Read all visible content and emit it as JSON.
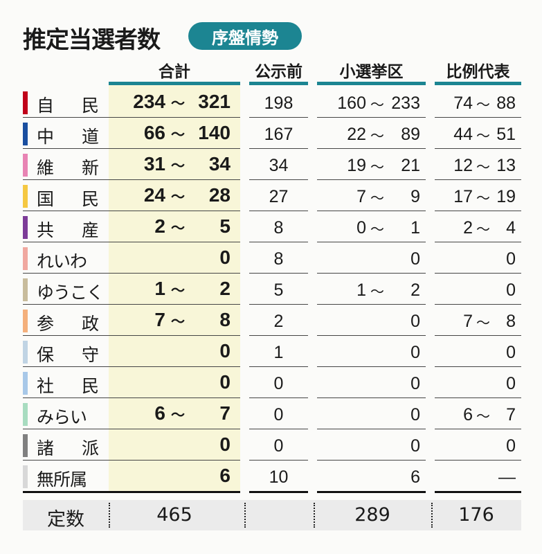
{
  "title": "推定当選者数",
  "badge": "序盤情勢",
  "accent_color": "#1c8592",
  "headers": [
    "合計",
    "公示前",
    "小選挙区",
    "比例代表"
  ],
  "chart_data": {
    "type": "table",
    "columns": [
      "合計",
      "公示前",
      "小選挙区",
      "比例代表"
    ],
    "rows": [
      {
        "party": "自民",
        "color": "#c0001a",
        "total": [
          "234",
          "321"
        ],
        "pre": "198",
        "district": [
          "160",
          "233"
        ],
        "pr": [
          "74",
          "88"
        ]
      },
      {
        "party": "中道",
        "color": "#1a4fa0",
        "total": [
          "66",
          "140"
        ],
        "pre": "167",
        "district": [
          "22",
          "89"
        ],
        "pr": [
          "44",
          "51"
        ]
      },
      {
        "party": "維新",
        "color": "#e884b4",
        "total": [
          "31",
          "34"
        ],
        "pre": "34",
        "district": [
          "19",
          "21"
        ],
        "pr": [
          "12",
          "13"
        ]
      },
      {
        "party": "国民",
        "color": "#f5c842",
        "total": [
          "24",
          "28"
        ],
        "pre": "27",
        "district": [
          "7",
          "9"
        ],
        "pr": [
          "17",
          "19"
        ]
      },
      {
        "party": "共産",
        "color": "#7d3c98",
        "total": [
          "2",
          "5"
        ],
        "pre": "8",
        "district": [
          "0",
          "1"
        ],
        "pr": [
          "2",
          "4"
        ]
      },
      {
        "party": "れいわ",
        "color": "#f0a8a0",
        "total": [
          "",
          "0"
        ],
        "pre": "8",
        "district": [
          "",
          "0"
        ],
        "pr": [
          "",
          "0"
        ]
      },
      {
        "party": "ゆうこく",
        "color": "#c8bc9c",
        "total": [
          "1",
          "2"
        ],
        "pre": "5",
        "district": [
          "1",
          "2"
        ],
        "pr": [
          "",
          "0"
        ]
      },
      {
        "party": "参政",
        "color": "#f4b07c",
        "total": [
          "7",
          "8"
        ],
        "pre": "2",
        "district": [
          "",
          "0"
        ],
        "pr": [
          "7",
          "8"
        ]
      },
      {
        "party": "保守",
        "color": "#c0d4e4",
        "total": [
          "",
          "0"
        ],
        "pre": "1",
        "district": [
          "",
          "0"
        ],
        "pr": [
          "",
          "0"
        ]
      },
      {
        "party": "社民",
        "color": "#a8c8e8",
        "total": [
          "",
          "0"
        ],
        "pre": "0",
        "district": [
          "",
          "0"
        ],
        "pr": [
          "",
          "0"
        ]
      },
      {
        "party": "みらい",
        "color": "#a8dcc0",
        "total": [
          "6",
          "7"
        ],
        "pre": "0",
        "district": [
          "",
          "0"
        ],
        "pr": [
          "6",
          "7"
        ]
      },
      {
        "party": "諸派",
        "color": "#808080",
        "total": [
          "",
          "0"
        ],
        "pre": "0",
        "district": [
          "",
          "0"
        ],
        "pr": [
          "",
          "0"
        ]
      },
      {
        "party": "無所属",
        "color": "#d8d8d8",
        "total": [
          "",
          "6"
        ],
        "pre": "10",
        "district": [
          "",
          "6"
        ],
        "pr": [
          "",
          "—"
        ]
      }
    ],
    "range_separator": "～",
    "footer": {
      "label": "定数",
      "total": "465",
      "pre": "",
      "district": "289",
      "pr": "176"
    }
  }
}
